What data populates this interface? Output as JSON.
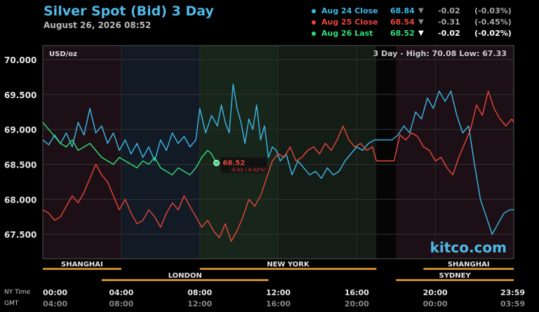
{
  "header": {
    "title": "Silver Spot (Bid) 3 Day",
    "subtitle": "August 26, 2026 08:52"
  },
  "legend": [
    {
      "name": "Aug 24 Close",
      "value": "68.84",
      "arrow": "▼",
      "change": "-0.02",
      "pct": "(-0.03%)",
      "color": "#3fb9e8",
      "text_color": "#3fb9e8",
      "arrow_color": "#888888",
      "chg_color": "#aaaaaa"
    },
    {
      "name": "Aug 25 Close",
      "value": "68.54",
      "arrow": "▼",
      "change": "-0.31",
      "pct": "(-0.45%)",
      "color": "#e8473a",
      "text_color": "#e8473a",
      "arrow_color": "#888888",
      "chg_color": "#aaaaaa"
    },
    {
      "name": "Aug 26 Last",
      "value": "68.52",
      "arrow": "▼",
      "change": "-0.02",
      "pct": "(-0.02%)",
      "color": "#33dd77",
      "text_color": "#33dd77",
      "arrow_color": "#ffffff",
      "chg_color": "#ffffff"
    }
  ],
  "chart_data": {
    "type": "line",
    "unit_label": "USD/oz",
    "range_text": "3 Day - High: 70.08  Low: 67.33",
    "watermark": "kitco.com",
    "ylim": [
      67.15,
      70.2
    ],
    "y_ticks": [
      "70.000",
      "69.500",
      "69.000",
      "68.500",
      "68.000",
      "67.500"
    ],
    "y_tick_values": [
      70.0,
      69.5,
      69.0,
      68.5,
      68.0,
      67.5
    ],
    "xlim": [
      0,
      24
    ],
    "x_tick_hours": [
      0,
      4,
      8,
      12,
      16,
      20,
      24
    ],
    "x_label_top": [
      "00:00",
      "04:00",
      "08:00",
      "12:00",
      "16:00",
      "20:00",
      "23:59"
    ],
    "x_label_bottom": [
      "04:00",
      "08:00",
      "12:00",
      "16:00",
      "20:00",
      "00:00",
      "03:59"
    ],
    "row_label_top": "NY Time",
    "row_label_bottom": "GMT",
    "sessions": [
      {
        "name": "SHANGHAI",
        "start": 0,
        "end": 4,
        "row": 1
      },
      {
        "name": "NEW YORK",
        "start": 8,
        "end": 17,
        "row": 1
      },
      {
        "name": "SHANGHAI",
        "start": 19.4,
        "end": 24,
        "row": 1
      },
      {
        "name": "LONDON",
        "start": 3,
        "end": 11.5,
        "row": 2
      },
      {
        "name": "SYDNEY",
        "start": 18,
        "end": 24,
        "row": 2
      }
    ],
    "shading": [
      {
        "start": 0,
        "end": 4,
        "color": "#1c1016"
      },
      {
        "start": 4,
        "end": 8,
        "color": "#121a26"
      },
      {
        "start": 8,
        "end": 12,
        "color": "#17251a"
      },
      {
        "start": 12,
        "end": 17,
        "color": "#141c16"
      },
      {
        "start": 17,
        "end": 18,
        "color": "#050505"
      },
      {
        "start": 18,
        "end": 24,
        "color": "#1c1016"
      }
    ],
    "last_marker": {
      "x": 8.85,
      "y": 68.52,
      "label": "68.52",
      "sub": "-0.02 (-0.02%)"
    },
    "series": [
      {
        "name": "Aug 24 Close",
        "color": "#3fb9e8",
        "x": [
          0,
          0.3,
          0.6,
          0.9,
          1.2,
          1.5,
          1.8,
          2.1,
          2.4,
          2.7,
          3.0,
          3.3,
          3.6,
          3.9,
          4.2,
          4.5,
          4.8,
          5.1,
          5.4,
          5.7,
          6.0,
          6.3,
          6.6,
          6.9,
          7.2,
          7.5,
          7.8,
          8.0,
          8.3,
          8.6,
          8.9,
          9.1,
          9.3,
          9.5,
          9.7,
          9.9,
          10.1,
          10.3,
          10.5,
          10.7,
          10.9,
          11.1,
          11.3,
          11.5,
          11.7,
          11.9,
          12.1,
          12.4,
          12.7,
          13.0,
          13.3,
          13.6,
          13.9,
          14.2,
          14.5,
          14.8,
          15.1,
          15.4,
          15.7,
          16.0,
          16.3,
          16.6,
          16.9,
          17.2,
          17.5,
          17.8,
          18.1,
          18.4,
          18.7,
          19.0,
          19.3,
          19.6,
          19.9,
          20.2,
          20.5,
          20.8,
          21.1,
          21.4,
          21.7,
          22.0,
          22.3,
          22.6,
          22.9,
          23.2,
          23.5,
          23.8,
          24.0
        ],
        "y": [
          68.85,
          68.78,
          68.92,
          68.8,
          68.95,
          68.75,
          69.1,
          68.92,
          69.3,
          68.95,
          69.05,
          68.8,
          68.95,
          68.7,
          68.85,
          68.65,
          68.8,
          68.6,
          68.75,
          68.55,
          68.85,
          68.7,
          68.95,
          68.8,
          68.9,
          68.75,
          68.85,
          69.3,
          68.95,
          69.2,
          69.05,
          69.35,
          69.1,
          68.95,
          69.65,
          69.3,
          69.1,
          68.8,
          69.15,
          69.0,
          69.35,
          68.85,
          69.05,
          68.6,
          68.75,
          68.7,
          68.55,
          68.65,
          68.35,
          68.55,
          68.45,
          68.35,
          68.4,
          68.3,
          68.45,
          68.35,
          68.4,
          68.55,
          68.65,
          68.75,
          68.7,
          68.8,
          68.85,
          68.85,
          68.85,
          68.85,
          68.92,
          69.05,
          68.95,
          69.25,
          69.15,
          69.45,
          69.3,
          69.55,
          69.4,
          69.55,
          69.2,
          68.95,
          69.05,
          68.5,
          68.0,
          67.75,
          67.5,
          67.65,
          67.8,
          67.85,
          67.85
        ]
      },
      {
        "name": "Aug 25 Close",
        "color": "#e8473a",
        "x": [
          0,
          0.3,
          0.6,
          0.9,
          1.2,
          1.5,
          1.8,
          2.1,
          2.4,
          2.7,
          3.0,
          3.3,
          3.6,
          3.9,
          4.2,
          4.5,
          4.8,
          5.1,
          5.4,
          5.7,
          6.0,
          6.3,
          6.6,
          6.9,
          7.2,
          7.5,
          7.8,
          8.1,
          8.4,
          8.7,
          9.0,
          9.3,
          9.6,
          9.9,
          10.2,
          10.5,
          10.8,
          11.1,
          11.4,
          11.7,
          12.0,
          12.3,
          12.6,
          12.9,
          13.2,
          13.5,
          13.8,
          14.1,
          14.4,
          14.7,
          15.0,
          15.3,
          15.6,
          15.9,
          16.2,
          16.5,
          16.8,
          17.0,
          17.3,
          17.6,
          17.9,
          18.2,
          18.5,
          18.8,
          19.1,
          19.4,
          19.7,
          20.0,
          20.3,
          20.6,
          20.9,
          21.2,
          21.5,
          21.8,
          22.1,
          22.4,
          22.7,
          23.0,
          23.3,
          23.6,
          23.9,
          24.0
        ],
        "y": [
          67.85,
          67.8,
          67.7,
          67.75,
          67.9,
          68.05,
          67.95,
          68.1,
          68.3,
          68.5,
          68.35,
          68.25,
          68.05,
          67.85,
          68.0,
          67.8,
          67.65,
          67.7,
          67.85,
          67.75,
          67.6,
          67.8,
          67.95,
          67.85,
          68.05,
          67.9,
          67.75,
          67.6,
          67.7,
          67.55,
          67.45,
          67.65,
          67.4,
          67.55,
          67.75,
          68.0,
          67.9,
          68.05,
          68.3,
          68.55,
          68.65,
          68.6,
          68.75,
          68.55,
          68.6,
          68.7,
          68.75,
          68.65,
          68.8,
          68.7,
          68.85,
          69.05,
          68.85,
          68.75,
          68.8,
          68.7,
          68.75,
          68.55,
          68.55,
          68.55,
          68.55,
          68.92,
          68.85,
          68.95,
          68.9,
          68.75,
          68.7,
          68.55,
          68.6,
          68.45,
          68.35,
          68.6,
          68.8,
          69.0,
          69.35,
          69.2,
          69.55,
          69.3,
          69.15,
          69.05,
          69.15,
          69.1
        ]
      },
      {
        "name": "Aug 26 Last",
        "color": "#33dd77",
        "x": [
          0,
          0.3,
          0.6,
          0.9,
          1.2,
          1.5,
          1.8,
          2.1,
          2.4,
          2.7,
          3.0,
          3.3,
          3.6,
          3.9,
          4.2,
          4.5,
          4.8,
          5.1,
          5.4,
          5.7,
          6.0,
          6.3,
          6.6,
          6.9,
          7.2,
          7.5,
          7.8,
          8.1,
          8.4,
          8.6,
          8.85
        ],
        "y": [
          69.1,
          69.0,
          68.9,
          68.8,
          68.75,
          68.85,
          68.7,
          68.75,
          68.8,
          68.7,
          68.6,
          68.55,
          68.5,
          68.6,
          68.55,
          68.5,
          68.45,
          68.55,
          68.5,
          68.6,
          68.45,
          68.4,
          68.35,
          68.45,
          68.4,
          68.35,
          68.45,
          68.6,
          68.7,
          68.65,
          68.52
        ]
      }
    ]
  }
}
